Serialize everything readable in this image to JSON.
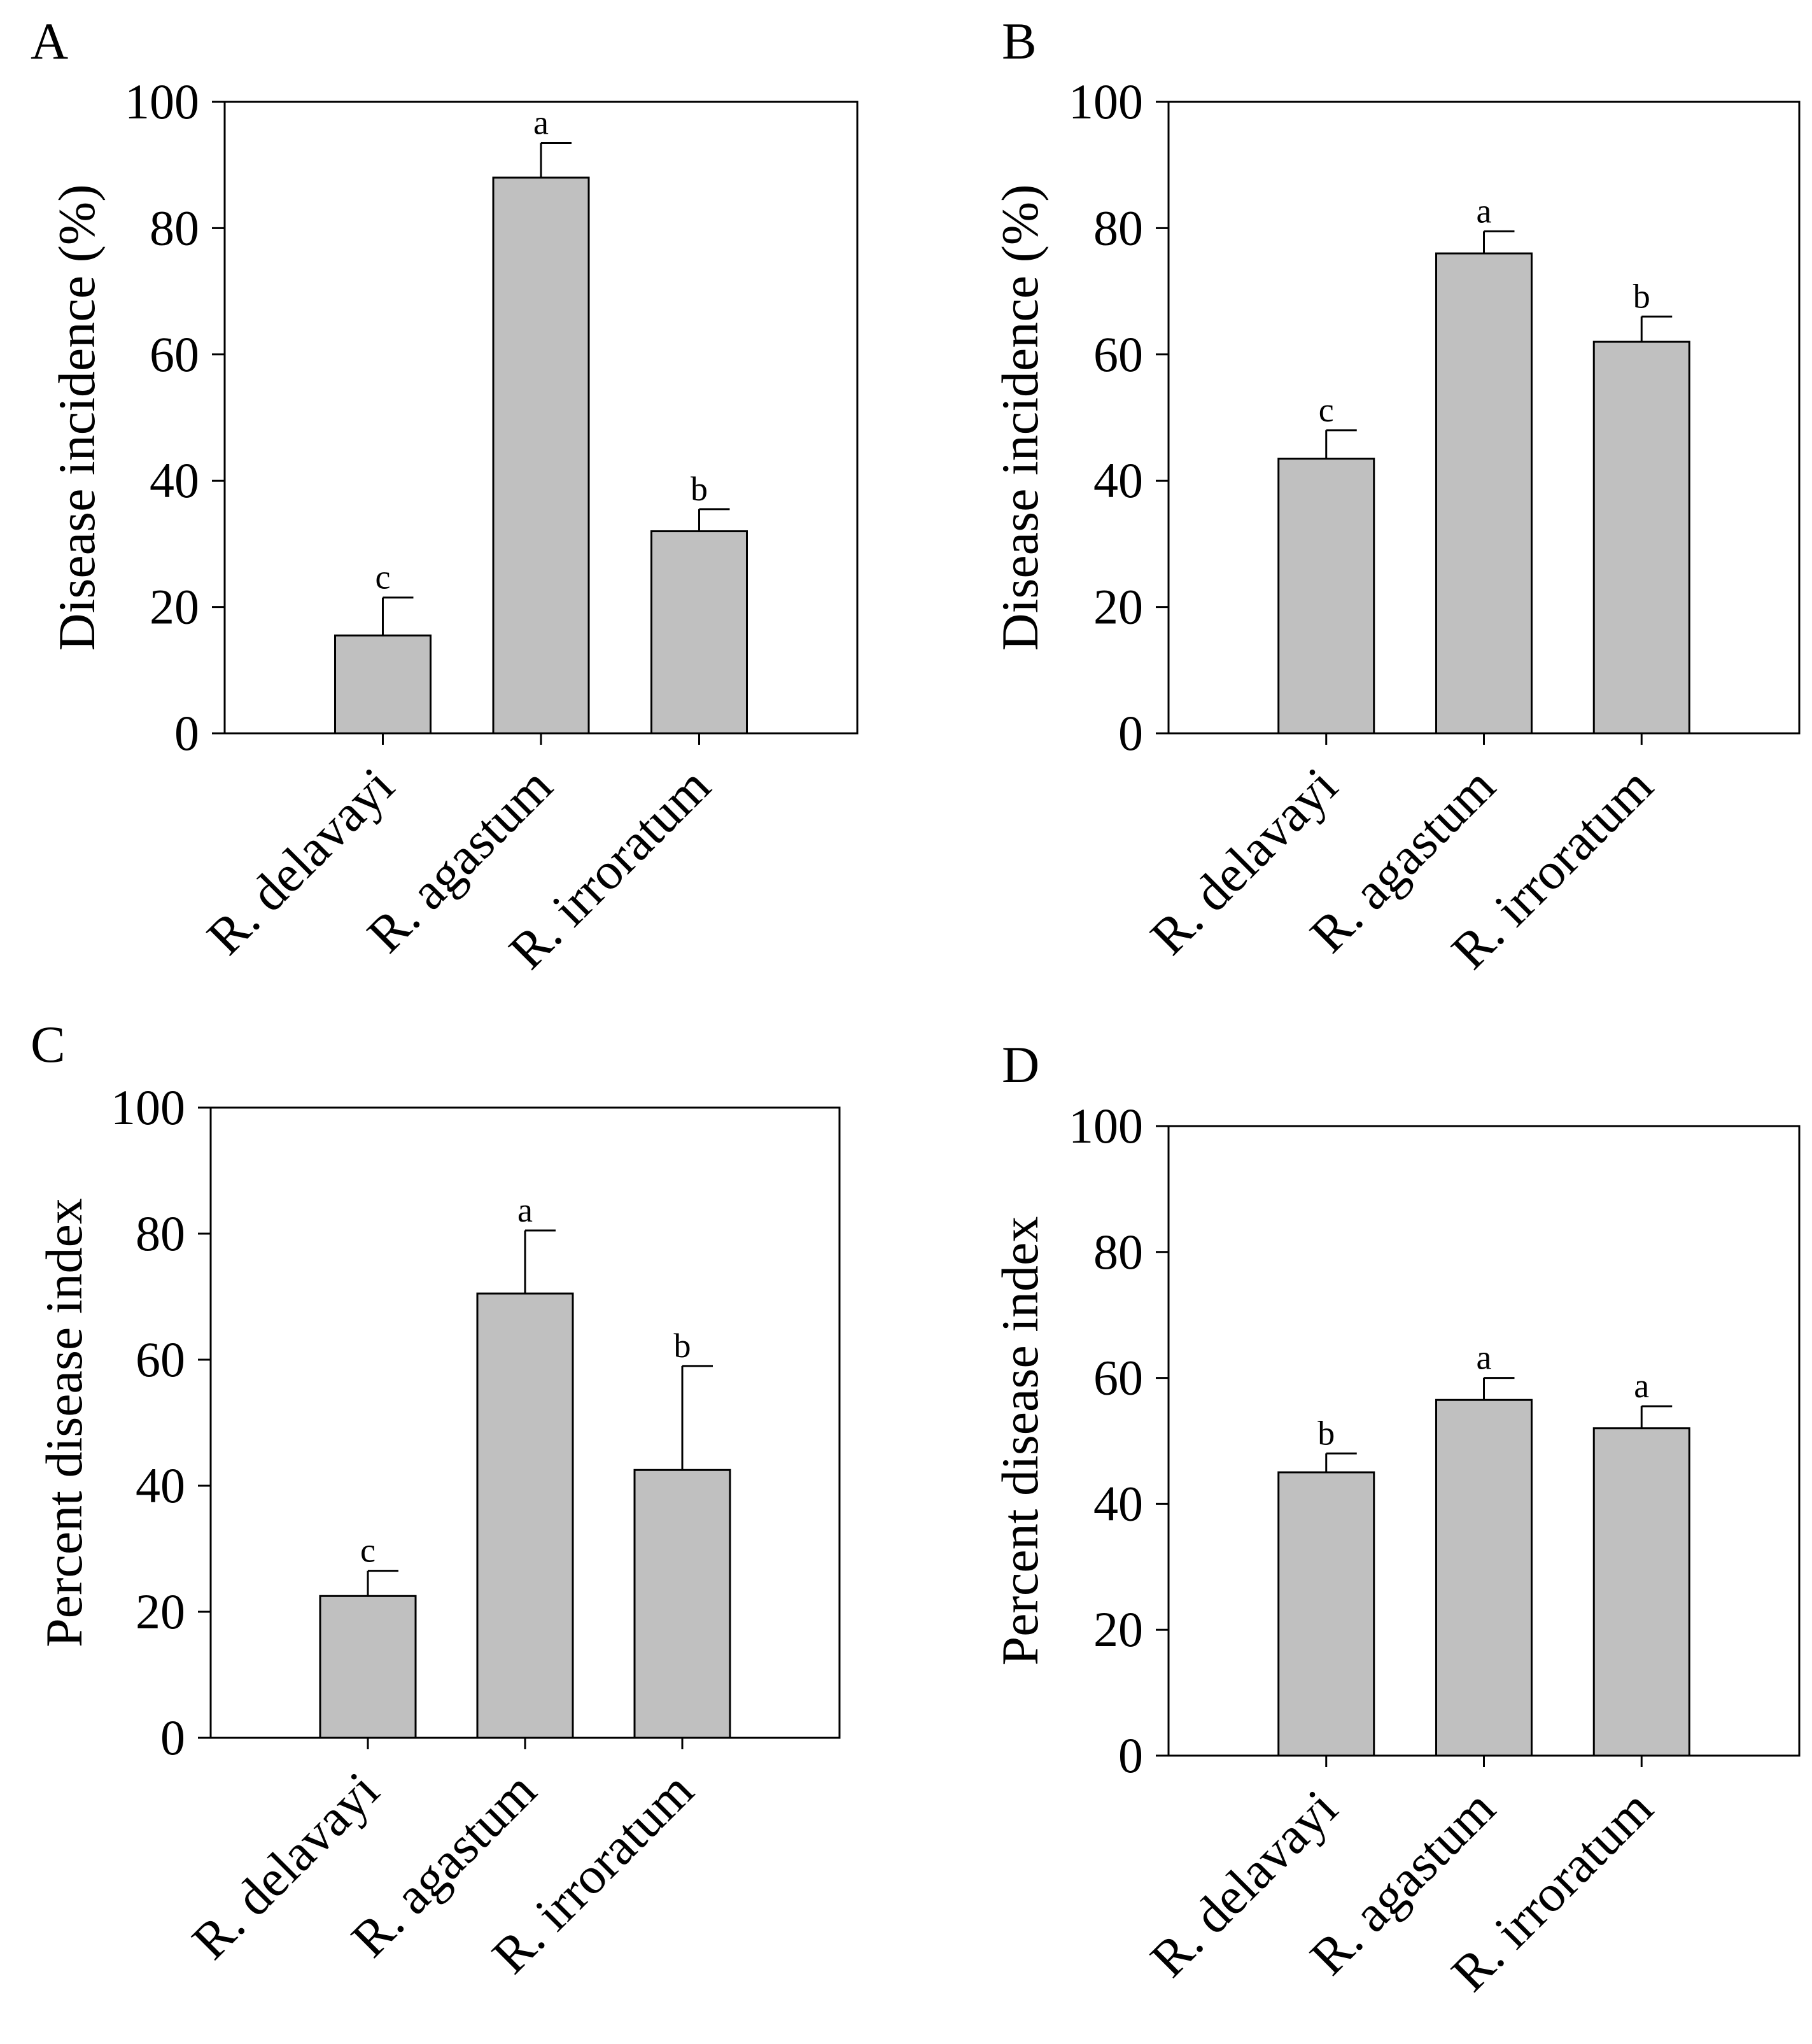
{
  "colors": {
    "bar_fill": "#c0c0c0",
    "stroke": "#000000",
    "background": "#ffffff"
  },
  "chart_data": [
    {
      "panel": "A",
      "type": "bar",
      "categories": [
        "R. delavayi",
        "R. agastum",
        "R. irroratum"
      ],
      "values": [
        15.5,
        88,
        32
      ],
      "errors": [
        6,
        5.5,
        3.5
      ],
      "significance": [
        "c",
        "a",
        "b"
      ],
      "ylabel": "Disease incidence (%)",
      "xlabel": "",
      "ylim": [
        0,
        100
      ],
      "yticks": [
        0,
        20,
        40,
        60,
        80,
        100
      ],
      "grid": false,
      "legend": "none"
    },
    {
      "panel": "B",
      "type": "bar",
      "categories": [
        "R. delavayi",
        "R. agastum",
        "R. irroratum"
      ],
      "values": [
        43.5,
        76,
        62
      ],
      "errors": [
        4.5,
        3.5,
        4
      ],
      "significance": [
        "c",
        "a",
        "b"
      ],
      "ylabel": "Disease incidence (%)",
      "xlabel": "",
      "ylim": [
        0,
        100
      ],
      "yticks": [
        0,
        20,
        40,
        60,
        80,
        100
      ],
      "grid": false,
      "legend": "none"
    },
    {
      "panel": "C",
      "type": "bar",
      "categories": [
        "R. delavayi",
        "R. agastum",
        "R. irroratum"
      ],
      "values": [
        22.5,
        70.5,
        42.5
      ],
      "errors": [
        4,
        10,
        16.5
      ],
      "significance": [
        "c",
        "a",
        "b"
      ],
      "ylabel": "Percent disease index",
      "xlabel": "",
      "ylim": [
        0,
        100
      ],
      "yticks": [
        0,
        20,
        40,
        60,
        80,
        100
      ],
      "grid": false,
      "legend": "none"
    },
    {
      "panel": "D",
      "type": "bar",
      "categories": [
        "R. delavayi",
        "R. agastum",
        "R. irroratum"
      ],
      "values": [
        45,
        56.5,
        52
      ],
      "errors": [
        3,
        3.5,
        3.5
      ],
      "significance": [
        "b",
        "a",
        "a"
      ],
      "ylabel": "Percent disease index",
      "xlabel": "",
      "ylim": [
        0,
        100
      ],
      "yticks": [
        0,
        20,
        40,
        60,
        80,
        100
      ],
      "grid": false,
      "legend": "none"
    }
  ]
}
